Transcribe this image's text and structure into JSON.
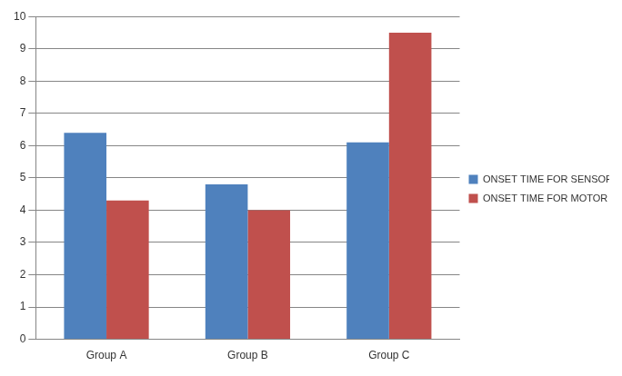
{
  "chart_data": {
    "type": "bar",
    "categories": [
      "Group A",
      "Group B",
      "Group C"
    ],
    "series": [
      {
        "name": "ONSET TIME FOR SENSORY BLOCK OTSB",
        "color": "#4f81bd",
        "values": [
          6.4,
          4.8,
          6.1
        ]
      },
      {
        "name": "ONSET TIME FOR MOTOR BLOCK OTMB",
        "color": "#c0504d",
        "values": [
          4.3,
          4.0,
          9.5
        ]
      }
    ],
    "ylim": [
      0,
      10
    ],
    "yticks": [
      0,
      1,
      2,
      3,
      4,
      5,
      6,
      7,
      8,
      9,
      10
    ],
    "grid": true,
    "legend": "right"
  }
}
